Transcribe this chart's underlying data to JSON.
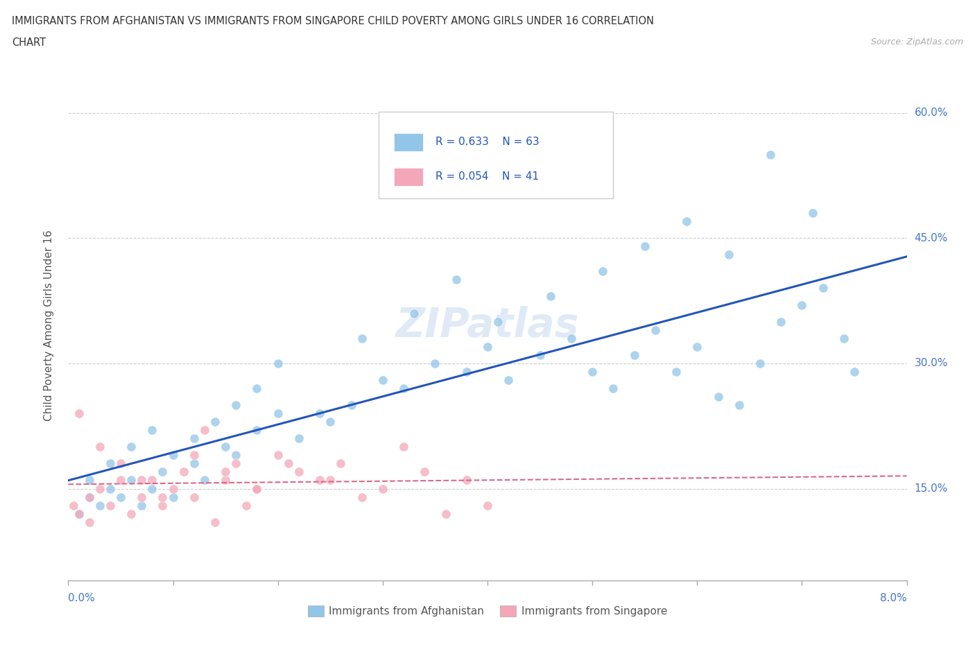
{
  "title_line1": "IMMIGRANTS FROM AFGHANISTAN VS IMMIGRANTS FROM SINGAPORE CHILD POVERTY AMONG GIRLS UNDER 16 CORRELATION",
  "title_line2": "CHART",
  "source": "Source: ZipAtlas.com",
  "ylabel": "Child Poverty Among Girls Under 16",
  "yticks": [
    "15.0%",
    "30.0%",
    "45.0%",
    "60.0%"
  ],
  "ytick_vals": [
    0.15,
    0.3,
    0.45,
    0.6
  ],
  "xmin": 0.0,
  "xmax": 0.08,
  "ymin": 0.04,
  "ymax": 0.65,
  "afghanistan_color": "#92c5e8",
  "singapore_color": "#f4a7b9",
  "afghanistan_line_color": "#2255bb",
  "singapore_line_color": "#dd6688",
  "legend_R_afghanistan": "R = 0.633",
  "legend_N_afghanistan": "N = 63",
  "legend_R_singapore": "R = 0.054",
  "legend_N_singapore": "N = 41",
  "watermark": "ZIPatlas",
  "afghanistan_scatter_x": [
    0.001,
    0.002,
    0.003,
    0.004,
    0.005,
    0.006,
    0.007,
    0.008,
    0.009,
    0.01,
    0.012,
    0.013,
    0.015,
    0.016,
    0.018,
    0.02,
    0.022,
    0.025,
    0.027,
    0.03,
    0.032,
    0.035,
    0.038,
    0.04,
    0.042,
    0.045,
    0.048,
    0.05,
    0.052,
    0.054,
    0.056,
    0.058,
    0.06,
    0.062,
    0.064,
    0.066,
    0.068,
    0.07,
    0.072,
    0.074,
    0.002,
    0.004,
    0.006,
    0.008,
    0.01,
    0.012,
    0.014,
    0.016,
    0.018,
    0.02,
    0.024,
    0.028,
    0.033,
    0.037,
    0.041,
    0.046,
    0.051,
    0.055,
    0.059,
    0.063,
    0.067,
    0.071,
    0.075
  ],
  "afghanistan_scatter_y": [
    0.12,
    0.14,
    0.13,
    0.15,
    0.14,
    0.16,
    0.13,
    0.15,
    0.17,
    0.14,
    0.18,
    0.16,
    0.2,
    0.19,
    0.22,
    0.24,
    0.21,
    0.23,
    0.25,
    0.28,
    0.27,
    0.3,
    0.29,
    0.32,
    0.28,
    0.31,
    0.33,
    0.29,
    0.27,
    0.31,
    0.34,
    0.29,
    0.32,
    0.26,
    0.25,
    0.3,
    0.35,
    0.37,
    0.39,
    0.33,
    0.16,
    0.18,
    0.2,
    0.22,
    0.19,
    0.21,
    0.23,
    0.25,
    0.27,
    0.3,
    0.24,
    0.33,
    0.36,
    0.4,
    0.35,
    0.38,
    0.41,
    0.44,
    0.47,
    0.43,
    0.55,
    0.48,
    0.29
  ],
  "singapore_scatter_x": [
    0.0005,
    0.001,
    0.002,
    0.003,
    0.004,
    0.005,
    0.006,
    0.007,
    0.008,
    0.009,
    0.01,
    0.011,
    0.012,
    0.013,
    0.014,
    0.015,
    0.016,
    0.017,
    0.018,
    0.02,
    0.022,
    0.024,
    0.026,
    0.028,
    0.03,
    0.032,
    0.034,
    0.036,
    0.038,
    0.04,
    0.001,
    0.003,
    0.005,
    0.007,
    0.009,
    0.012,
    0.015,
    0.018,
    0.021,
    0.025,
    0.002
  ],
  "singapore_scatter_y": [
    0.13,
    0.12,
    0.14,
    0.15,
    0.13,
    0.16,
    0.12,
    0.14,
    0.16,
    0.13,
    0.15,
    0.17,
    0.14,
    0.22,
    0.11,
    0.16,
    0.18,
    0.13,
    0.15,
    0.19,
    0.17,
    0.16,
    0.18,
    0.14,
    0.15,
    0.2,
    0.17,
    0.12,
    0.16,
    0.13,
    0.24,
    0.2,
    0.18,
    0.16,
    0.14,
    0.19,
    0.17,
    0.15,
    0.18,
    0.16,
    0.11
  ]
}
